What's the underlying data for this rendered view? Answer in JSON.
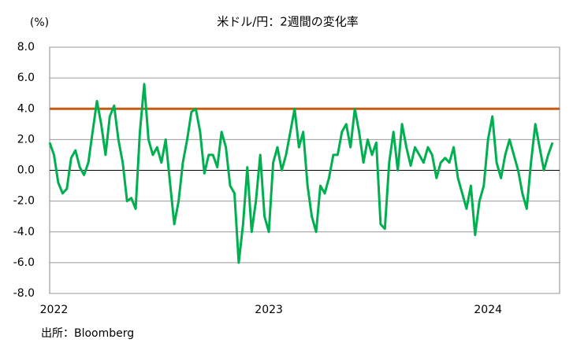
{
  "chart_data": {
    "type": "line",
    "title": "米ドル/円：2週間の変化率",
    "y_unit": "(%)",
    "source": "出所：Bloomberg",
    "categories": [
      null,
      "2022",
      null,
      null,
      null,
      null,
      null,
      null,
      null,
      null,
      null,
      null,
      null,
      null,
      null,
      null,
      null,
      null,
      null,
      null,
      null,
      null,
      null,
      null,
      null,
      null,
      null,
      null,
      null,
      null,
      null,
      null,
      null,
      null,
      null,
      null,
      null,
      null,
      null,
      null,
      null,
      null,
      null,
      null,
      null,
      null,
      null,
      null,
      null,
      null,
      null,
      "2023",
      null,
      null,
      null,
      null,
      null,
      null,
      null,
      null,
      null,
      null,
      null,
      null,
      null,
      null,
      null,
      null,
      null,
      null,
      null,
      null,
      null,
      null,
      null,
      null,
      null,
      null,
      null,
      null,
      null,
      null,
      null,
      null,
      null,
      null,
      null,
      null,
      null,
      null,
      null,
      null,
      null,
      null,
      null,
      null,
      null,
      null,
      null,
      null,
      null,
      null,
      "2024",
      null,
      null,
      null,
      null,
      null,
      null,
      null,
      null,
      null,
      null,
      null,
      null,
      null,
      null,
      null
    ],
    "series": [
      {
        "color": "#00b050",
        "values": [
          1.8,
          1.0,
          -0.8,
          -1.5,
          -1.2,
          0.8,
          1.3,
          0.2,
          -0.3,
          0.5,
          2.5,
          4.5,
          3.0,
          1.0,
          3.5,
          4.2,
          2.0,
          0.5,
          -2.0,
          -1.8,
          -2.5,
          2.5,
          5.6,
          2.0,
          1.0,
          1.5,
          0.5,
          2.0,
          -0.8,
          -3.5,
          -2.0,
          0.5,
          2.0,
          3.8,
          4.0,
          2.5,
          -0.2,
          1.0,
          1.0,
          0.2,
          2.5,
          1.5,
          -1.0,
          -1.5,
          -6.0,
          -3.5,
          0.2,
          -4.0,
          -2.0,
          1.0,
          -3.0,
          -4.0,
          0.5,
          1.5,
          0.0,
          1.0,
          2.5,
          4.0,
          1.5,
          2.5,
          -1.0,
          -3.0,
          -4.0,
          -1.0,
          -1.5,
          -0.5,
          1.0,
          1.0,
          2.5,
          3.0,
          1.5,
          4.0,
          2.5,
          0.5,
          2.0,
          1.0,
          1.8,
          -3.5,
          -3.8,
          0.5,
          2.5,
          0.0,
          3.0,
          1.5,
          0.3,
          1.5,
          1.0,
          0.5,
          1.5,
          1.0,
          -0.5,
          0.5,
          0.8,
          0.5,
          1.5,
          -0.5,
          -1.5,
          -2.5,
          -1.0,
          -4.2,
          -2.0,
          -1.0,
          2.0,
          3.5,
          0.5,
          -0.5,
          1.0,
          2.0,
          1.0,
          0.0,
          -1.5,
          -2.5,
          0.5,
          3.0,
          1.5,
          0.0,
          1.0,
          1.8
        ]
      }
    ],
    "reference_line": {
      "value": 4,
      "color": "#c55a11"
    },
    "ylim": [
      -8,
      8
    ],
    "yticks": [
      {
        "value": -8,
        "label": "-8.0"
      },
      {
        "value": -6,
        "label": "-6.0"
      },
      {
        "value": -4,
        "label": "-4.0"
      },
      {
        "value": -2,
        "label": "-2.0"
      },
      {
        "value": 0,
        "label": "0.0"
      },
      {
        "value": 2,
        "label": "2.0"
      },
      {
        "value": 4,
        "label": "4.0"
      },
      {
        "value": 6,
        "label": "6.0"
      },
      {
        "value": 8,
        "label": "8.0"
      }
    ],
    "grid": true
  }
}
